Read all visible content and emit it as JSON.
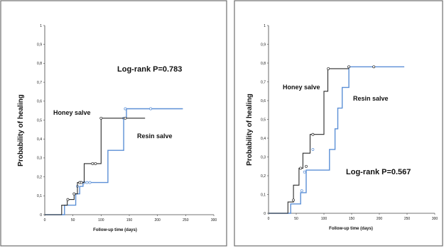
{
  "colors": {
    "honey": "#2b2b2b",
    "resin": "#5b8fd6",
    "frame": "#6f6f6f",
    "axis": "#444444"
  },
  "chart_data": [
    {
      "type": "line",
      "step": true,
      "xlabel": "Follow-up time (days)",
      "ylabel": "Probability of healing",
      "xlim": [
        0,
        300
      ],
      "ylim": [
        0,
        1
      ],
      "x_ticks": [
        "0",
        "50",
        "100",
        "150",
        "200",
        "250",
        "300"
      ],
      "y_ticks": [
        "0",
        "0,1",
        "0,2",
        "0,3",
        "0,4",
        "0,5",
        "0,6",
        "0,7",
        "0,8",
        "0,9",
        "1"
      ],
      "annotation": "Log-rank P=0.783",
      "series": [
        {
          "name": "Honey salve",
          "color": "honey",
          "x": [
            0,
            30,
            40,
            52,
            58,
            62,
            70,
            100,
            143,
            178
          ],
          "y": [
            0,
            0.05,
            0.08,
            0.11,
            0.17,
            0.17,
            0.27,
            0.51,
            0.51,
            0.51
          ],
          "censored": [
            [
              41,
              0.08
            ],
            [
              52,
              0.11
            ],
            [
              62,
              0.17
            ],
            [
              65,
              0.17
            ],
            [
              85,
              0.27
            ],
            [
              90,
              0.27
            ],
            [
              100,
              0.51
            ],
            [
              143,
              0.51
            ]
          ]
        },
        {
          "name": "Resin salve",
          "color": "resin",
          "x": [
            0,
            35,
            55,
            62,
            68,
            112,
            140,
            145,
            245
          ],
          "y": [
            0,
            0.05,
            0.11,
            0.15,
            0.17,
            0.34,
            0.51,
            0.56,
            0.56
          ],
          "censored": [
            [
              58,
              0.15
            ],
            [
              64,
              0.17
            ],
            [
              70,
              0.17
            ],
            [
              75,
              0.17
            ],
            [
              80,
              0.17
            ],
            [
              140,
              0.51
            ],
            [
              143,
              0.56
            ],
            [
              188,
              0.56
            ]
          ]
        }
      ]
    },
    {
      "type": "line",
      "step": true,
      "xlabel": "Follow-up time (days)",
      "ylabel": "Probability of healing",
      "xlim": [
        0,
        300
      ],
      "ylim": [
        0,
        1
      ],
      "x_ticks": [
        "0",
        "50",
        "100",
        "150",
        "200",
        "250",
        "300"
      ],
      "y_ticks": [
        "0",
        "0,1",
        "0,2",
        "0,3",
        "0,4",
        "0,5",
        "0,6",
        "0,7",
        "0,8",
        "0,9",
        "1"
      ],
      "annotation": "Log-rank P=0.567",
      "series": [
        {
          "name": "Honey salve",
          "color": "honey",
          "x": [
            0,
            35,
            45,
            55,
            62,
            75,
            100,
            107,
            145
          ],
          "y": [
            0,
            0.06,
            0.15,
            0.24,
            0.32,
            0.42,
            0.65,
            0.77,
            0.77
          ],
          "censored": [
            [
              45,
              0.07
            ],
            [
              58,
              0.24
            ],
            [
              68,
              0.25
            ],
            [
              80,
              0.42
            ],
            [
              108,
              0.77
            ],
            [
              145,
              0.78
            ],
            [
              190,
              0.78
            ]
          ]
        },
        {
          "name": "Resin salve",
          "color": "resin",
          "x": [
            0,
            40,
            58,
            68,
            110,
            120,
            125,
            133,
            145,
            245
          ],
          "y": [
            0,
            0.05,
            0.11,
            0.23,
            0.34,
            0.45,
            0.56,
            0.67,
            0.78,
            0.78
          ],
          "censored": [
            [
              60,
              0.12
            ],
            [
              65,
              0.22
            ],
            [
              80,
              0.34
            ],
            [
              145,
              0.78
            ]
          ]
        }
      ]
    }
  ]
}
